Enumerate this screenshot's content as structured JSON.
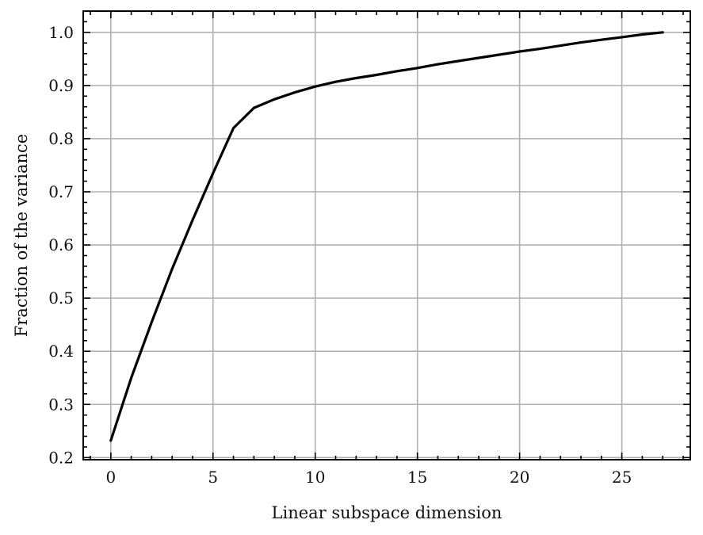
{
  "chart_data": {
    "type": "line",
    "title": "",
    "xlabel": "Linear subspace dimension",
    "ylabel": "Fraction of the variance",
    "xlim": [
      -1.35,
      28.35
    ],
    "ylim": [
      0.196,
      1.04
    ],
    "xticks": [
      0,
      5,
      10,
      15,
      20,
      25
    ],
    "xtick_labels": [
      "0",
      "5",
      "10",
      "15",
      "20",
      "25"
    ],
    "yticks": [
      0.2,
      0.3,
      0.4,
      0.5,
      0.6,
      0.7,
      0.8,
      0.9,
      1.0
    ],
    "ytick_labels": [
      "0.2",
      "0.3",
      "0.4",
      "0.5",
      "0.6",
      "0.7",
      "0.8",
      "0.9",
      "1.0"
    ],
    "grid": true,
    "series": [
      {
        "color": "#000000",
        "x": [
          0,
          1,
          2,
          3,
          4,
          5,
          6,
          7,
          8,
          9,
          10,
          11,
          12,
          13,
          14,
          15,
          16,
          17,
          18,
          19,
          20,
          21,
          22,
          23,
          24,
          25,
          26,
          27
        ],
        "y": [
          0.232,
          0.35,
          0.455,
          0.555,
          0.647,
          0.735,
          0.82,
          0.858,
          0.874,
          0.887,
          0.898,
          0.907,
          0.914,
          0.92,
          0.927,
          0.933,
          0.94,
          0.946,
          0.952,
          0.958,
          0.964,
          0.969,
          0.975,
          0.981,
          0.986,
          0.991,
          0.996,
          1.0
        ]
      }
    ]
  }
}
